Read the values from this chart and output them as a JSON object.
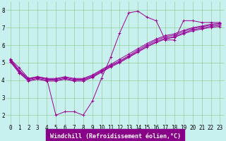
{
  "bg_color": "#c8f0ee",
  "line_color": "#990099",
  "grid_color": "#88cc88",
  "xlim": [
    -0.5,
    23.5
  ],
  "ylim": [
    1.5,
    8.5
  ],
  "xticks": [
    0,
    1,
    2,
    3,
    4,
    5,
    6,
    7,
    8,
    9,
    10,
    11,
    12,
    13,
    14,
    15,
    16,
    17,
    18,
    19,
    20,
    21,
    22,
    23
  ],
  "yticks": [
    2,
    3,
    4,
    5,
    6,
    7,
    8
  ],
  "xlabel": "Windchill (Refroidissement éolien,°C)",
  "series": [
    [
      5.2,
      4.7,
      4.1,
      4.2,
      4.1,
      2.0,
      2.2,
      2.2,
      2.0,
      2.8,
      4.1,
      5.3,
      6.7,
      7.85,
      7.95,
      7.6,
      7.4,
      6.3,
      6.3,
      7.4,
      7.4,
      7.3,
      7.3,
      7.3
    ],
    [
      5.2,
      4.55,
      4.1,
      4.2,
      4.1,
      4.1,
      4.2,
      4.1,
      4.1,
      4.3,
      4.6,
      4.9,
      5.2,
      5.5,
      5.8,
      6.1,
      6.35,
      6.55,
      6.65,
      6.85,
      7.0,
      7.1,
      7.2,
      7.25
    ],
    [
      5.15,
      4.5,
      4.05,
      4.15,
      4.05,
      4.05,
      4.15,
      4.05,
      4.05,
      4.25,
      4.55,
      4.85,
      5.1,
      5.4,
      5.72,
      6.02,
      6.28,
      6.48,
      6.58,
      6.78,
      6.95,
      7.05,
      7.15,
      7.2
    ],
    [
      5.1,
      4.45,
      4.0,
      4.1,
      4.0,
      4.0,
      4.1,
      4.0,
      4.0,
      4.2,
      4.5,
      4.8,
      5.05,
      5.35,
      5.65,
      5.95,
      6.2,
      6.4,
      6.5,
      6.7,
      6.88,
      6.98,
      7.08,
      7.13
    ],
    [
      5.05,
      4.4,
      3.95,
      4.05,
      3.95,
      3.95,
      4.05,
      3.95,
      3.95,
      4.15,
      4.45,
      4.75,
      5.0,
      5.3,
      5.6,
      5.9,
      6.15,
      6.35,
      6.45,
      6.65,
      6.82,
      6.92,
      7.02,
      7.07
    ]
  ],
  "tick_fontsize": 5.5,
  "xlabel_fontsize": 6.0,
  "xlabel_bg": "#880088",
  "xlabel_color": "white",
  "figsize": [
    3.2,
    2.0
  ],
  "dpi": 100
}
